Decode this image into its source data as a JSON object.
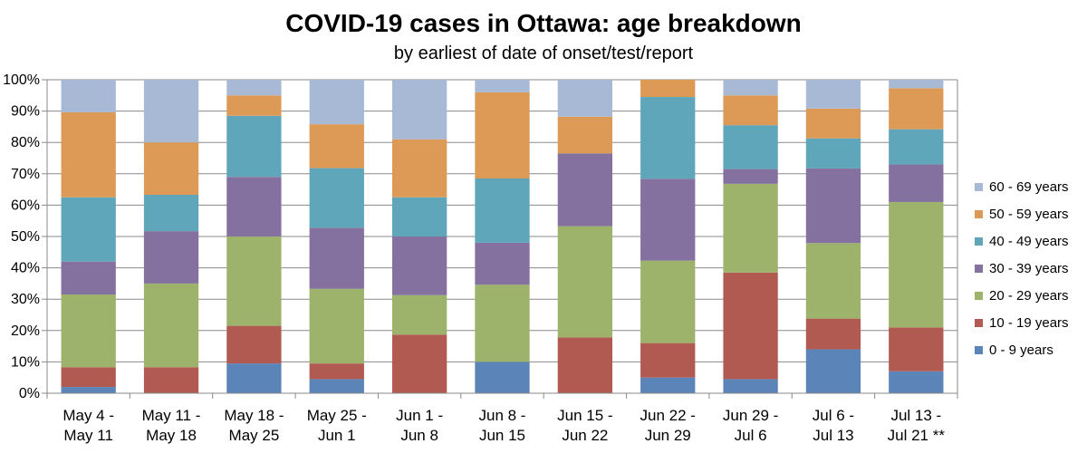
{
  "chart_data": {
    "type": "bar",
    "stacked": true,
    "title": "COVID-19 cases in Ottawa: age breakdown",
    "subtitle": "by earliest of date of onset/test/report",
    "xlabel": "",
    "ylabel": "",
    "ylim": [
      0,
      100
    ],
    "yticks": [
      "0%",
      "10%",
      "20%",
      "30%",
      "40%",
      "50%",
      "60%",
      "70%",
      "80%",
      "90%",
      "100%"
    ],
    "grid": true,
    "legend_position": "right",
    "categories": [
      [
        "May 4 -",
        "May 11"
      ],
      [
        "May 11 -",
        "May 18"
      ],
      [
        "May 18 -",
        "May 25"
      ],
      [
        "May 25 -",
        "Jun 1"
      ],
      [
        "Jun 1 -",
        "Jun 8"
      ],
      [
        "Jun 8 -",
        "Jun 15"
      ],
      [
        "Jun 15 -",
        "Jun 22"
      ],
      [
        "Jun 22 -",
        "Jun 29"
      ],
      [
        "Jun 29 -",
        "Jul 6"
      ],
      [
        "Jul 6 -",
        "Jul 13"
      ],
      [
        "Jul 13 -",
        "Jul 21 **"
      ]
    ],
    "series": [
      {
        "name": "0 - 9 years",
        "color": "#5b84b8",
        "values": [
          2,
          0,
          9.5,
          4.5,
          0,
          10,
          0,
          5,
          4.5,
          14,
          7
        ]
      },
      {
        "name": "10 - 19 years",
        "color": "#b15a52",
        "values": [
          6.3,
          8.3,
          12,
          5,
          18.7,
          0,
          17.8,
          11,
          34,
          9.8,
          14
        ]
      },
      {
        "name": "20 - 29 years",
        "color": "#9db26a",
        "values": [
          23.2,
          26.7,
          28.5,
          23.8,
          12.6,
          24.6,
          35.5,
          26.3,
          28.3,
          24.1,
          40
        ]
      },
      {
        "name": "30 - 39 years",
        "color": "#84719f",
        "values": [
          10.5,
          16.7,
          19,
          19.5,
          18.7,
          13.4,
          23.2,
          26.1,
          4.7,
          23.8,
          12
        ]
      },
      {
        "name": "40 - 49 years",
        "color": "#5fa6ba",
        "values": [
          20.5,
          11.6,
          19.5,
          19,
          12.5,
          20.5,
          0,
          26.1,
          14,
          9.6,
          11.2
        ]
      },
      {
        "name": "50 - 59 years",
        "color": "#dd9a57",
        "values": [
          27.1,
          16.7,
          6.5,
          14,
          18.5,
          27.5,
          11.7,
          5.5,
          9.5,
          9.5,
          13.1
        ]
      },
      {
        "name": "60 - 69 years",
        "color": "#a8b9d6",
        "values": [
          10.4,
          20,
          5,
          14.2,
          19,
          4,
          11.8,
          0,
          5,
          9.2,
          2.7
        ]
      }
    ]
  }
}
